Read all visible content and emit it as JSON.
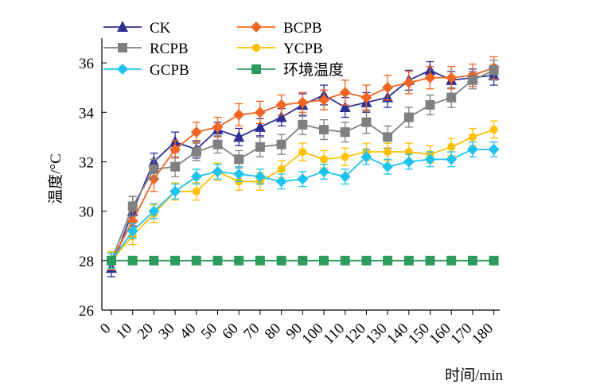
{
  "chart_data": {
    "type": "line",
    "title": "",
    "xlabel": "时间/min",
    "ylabel": "温度/°C",
    "x": [
      0,
      10,
      20,
      30,
      40,
      50,
      60,
      70,
      80,
      90,
      100,
      110,
      120,
      130,
      140,
      150,
      160,
      170,
      180
    ],
    "x_tick_labels": [
      "0",
      "10",
      "20",
      "30",
      "40",
      "50",
      "60",
      "70",
      "80",
      "90",
      "100",
      "110",
      "120",
      "130",
      "140",
      "150",
      "160",
      "170",
      "180"
    ],
    "ylim": [
      26,
      37
    ],
    "y_ticks": [
      26,
      28,
      30,
      32,
      34,
      36
    ],
    "y_tick_labels": [
      "26",
      "28",
      "30",
      "32",
      "34",
      "36"
    ],
    "grid": false,
    "legend_position": "top",
    "series": [
      {
        "name": "CK",
        "color": "#2e3192",
        "marker": "triangle",
        "values": [
          27.7,
          30.0,
          32.0,
          32.8,
          32.5,
          33.3,
          33.0,
          33.4,
          33.8,
          34.3,
          34.7,
          34.2,
          34.4,
          34.6,
          35.3,
          35.7,
          35.3,
          35.4,
          35.5
        ],
        "errors": [
          0.35,
          0.6,
          0.35,
          0.4,
          0.35,
          0.3,
          0.35,
          0.35,
          0.35,
          0.45,
          0.4,
          0.4,
          0.4,
          0.4,
          0.4,
          0.35,
          0.35,
          0.35,
          0.4
        ]
      },
      {
        "name": "BCPB",
        "color": "#f26522",
        "marker": "diamond",
        "values": [
          28.0,
          29.6,
          31.3,
          32.5,
          33.2,
          33.4,
          33.9,
          34.0,
          34.3,
          34.4,
          34.5,
          34.8,
          34.6,
          35.0,
          35.2,
          35.4,
          35.4,
          35.5,
          35.8
        ],
        "errors": [
          0.35,
          0.4,
          0.5,
          0.35,
          0.4,
          0.4,
          0.45,
          0.45,
          0.4,
          0.4,
          0.4,
          0.5,
          0.5,
          0.5,
          0.45,
          0.45,
          0.45,
          0.45,
          0.45
        ]
      },
      {
        "name": "RCPB",
        "color": "#808080",
        "marker": "square",
        "values": [
          28.0,
          30.2,
          31.7,
          31.8,
          32.4,
          32.7,
          32.1,
          32.6,
          32.7,
          33.5,
          33.3,
          33.2,
          33.6,
          33.0,
          33.8,
          34.3,
          34.6,
          35.3,
          35.7
        ],
        "errors": [
          0.35,
          0.4,
          0.4,
          0.4,
          0.35,
          0.35,
          0.35,
          0.4,
          0.4,
          0.4,
          0.4,
          0.4,
          0.45,
          0.45,
          0.4,
          0.4,
          0.4,
          0.35,
          0.4
        ]
      },
      {
        "name": "YCPB",
        "color": "#ffc000",
        "marker": "circle",
        "values": [
          28.0,
          29.0,
          29.9,
          30.8,
          30.8,
          31.6,
          31.2,
          31.2,
          31.7,
          32.4,
          32.1,
          32.2,
          32.4,
          32.4,
          32.4,
          32.3,
          32.6,
          33.0,
          33.3
        ],
        "errors": [
          0.35,
          0.35,
          0.35,
          0.35,
          0.35,
          0.35,
          0.35,
          0.35,
          0.35,
          0.35,
          0.35,
          0.35,
          0.35,
          0.35,
          0.35,
          0.35,
          0.35,
          0.35,
          0.35
        ]
      },
      {
        "name": "GCPB",
        "color": "#1fc3f0",
        "marker": "diamond",
        "values": [
          28.0,
          29.2,
          30.0,
          30.8,
          31.4,
          31.6,
          31.5,
          31.4,
          31.2,
          31.3,
          31.6,
          31.4,
          32.2,
          31.8,
          32.0,
          32.1,
          32.1,
          32.5,
          32.5
        ],
        "errors": [
          0.3,
          0.3,
          0.3,
          0.3,
          0.3,
          0.3,
          0.3,
          0.3,
          0.3,
          0.3,
          0.3,
          0.3,
          0.3,
          0.3,
          0.3,
          0.3,
          0.3,
          0.3,
          0.3
        ]
      },
      {
        "name": "环境温度",
        "color": "#2e9b5e",
        "marker": "square",
        "values": [
          28.0,
          28.0,
          28.0,
          28.0,
          28.0,
          28.0,
          28.0,
          28.0,
          28.0,
          28.0,
          28.0,
          28.0,
          28.0,
          28.0,
          28.0,
          28.0,
          28.0,
          28.0,
          28.0
        ],
        "errors": null
      }
    ]
  }
}
